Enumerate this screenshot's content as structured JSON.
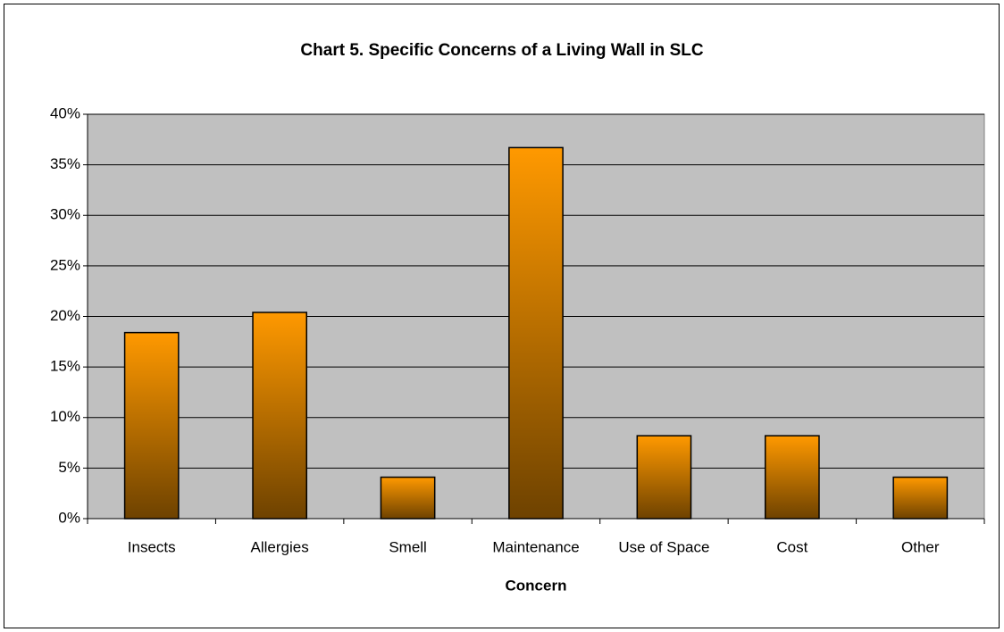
{
  "chart_data": {
    "type": "bar",
    "title": "Chart 5. Specific Concerns of a Living Wall in SLC",
    "x_label": "Concern",
    "categories": [
      "Insects",
      "Allergies",
      "Smell",
      "Maintenance",
      "Use of Space",
      "Cost",
      "Other"
    ],
    "values": [
      18.4,
      20.4,
      4.1,
      36.7,
      8.2,
      8.2,
      4.1
    ],
    "color": "#ff9900",
    "ylim": [
      0,
      40
    ],
    "yticks": [
      {
        "value": 0,
        "label": "0%"
      },
      {
        "value": 5,
        "label": "5%"
      },
      {
        "value": 10,
        "label": "10%"
      },
      {
        "value": 15,
        "label": "15%"
      },
      {
        "value": 20,
        "label": "20%"
      },
      {
        "value": 25,
        "label": "25%"
      },
      {
        "value": 30,
        "label": "30%"
      },
      {
        "value": 35,
        "label": "35%"
      },
      {
        "value": 40,
        "label": "40%"
      }
    ],
    "grid": true
  }
}
